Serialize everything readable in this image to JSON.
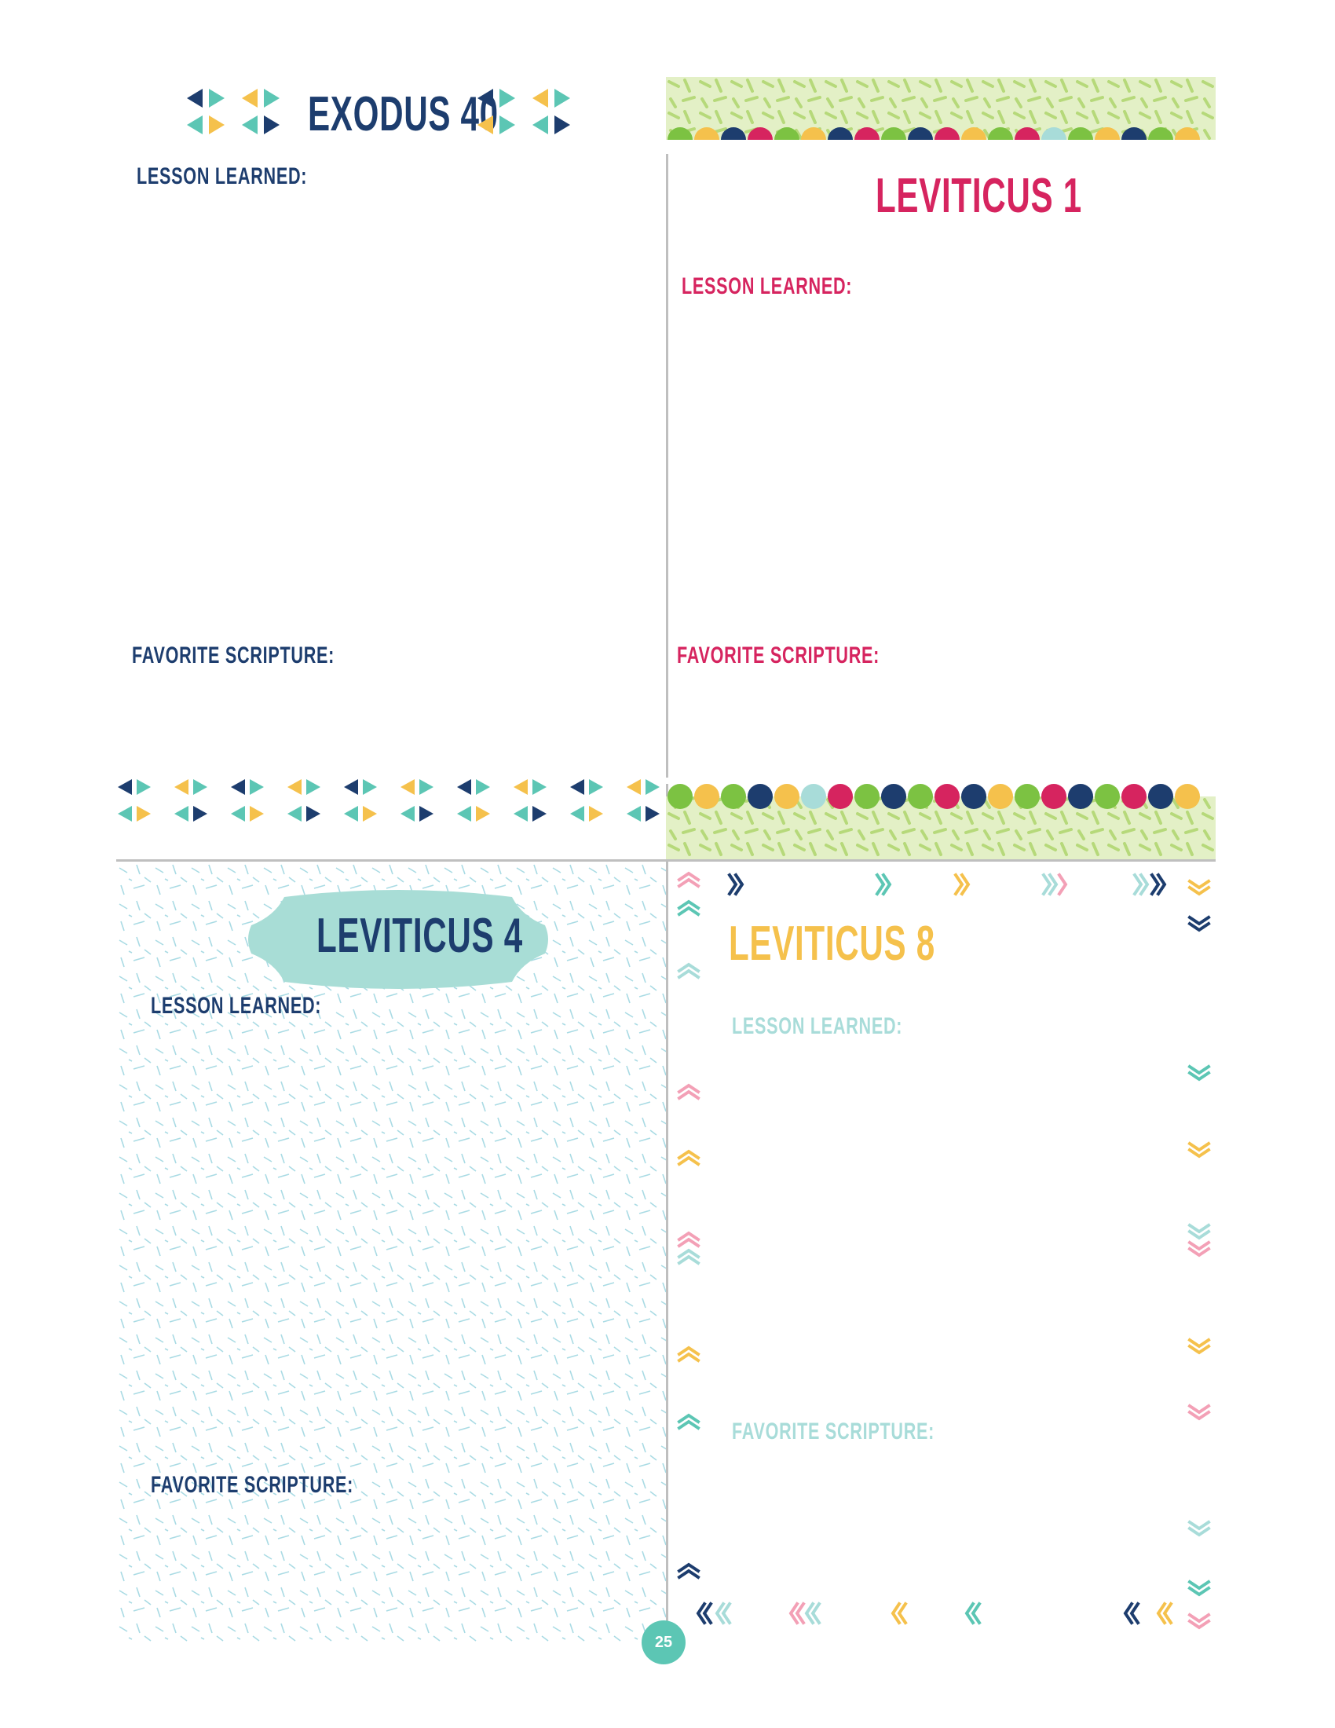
{
  "page_number": "25",
  "panels": {
    "top_left": {
      "title": "EXODUS 40",
      "lesson_label": "LESSON LEARNED:",
      "scripture_label": "FAVORITE SCRIPTURE:",
      "colors": {
        "title": "#1d3d6e",
        "label": "#1d3d6e",
        "accents": [
          "#1d3d6e",
          "#5cc6b4",
          "#f5c14c"
        ]
      }
    },
    "top_right": {
      "title": "LEVITICUS 1",
      "lesson_label": "LESSON LEARNED:",
      "scripture_label": "FAVORITE SCRIPTURE:",
      "colors": {
        "title": "#d6245f",
        "label": "#d6245f",
        "banner": "#cde6a0",
        "scallops": [
          "#7cc242",
          "#f5c14c",
          "#1d3d6e",
          "#d6245f",
          "#a8dcd9"
        ]
      }
    },
    "bottom_left": {
      "title": "LEVITICUS 4",
      "lesson_label": "LESSON LEARNED:",
      "scripture_label": "FAVORITE SCRIPTURE:",
      "colors": {
        "title": "#1d3d6e",
        "label": "#1d3d6e",
        "badge": "#a8ddd6",
        "pattern": "#9fd4e0"
      }
    },
    "bottom_right": {
      "title": "LEVITICUS 8",
      "lesson_label": "LESSON LEARNED:",
      "scripture_label": "FAVORITE SCRIPTURE:",
      "colors": {
        "title": "#f5c14c",
        "label": "#a8dcd9",
        "chevrons": [
          "#f3a0b6",
          "#5cc6b4",
          "#a8dcd9",
          "#f5c14c",
          "#1d3d6e"
        ]
      }
    }
  }
}
